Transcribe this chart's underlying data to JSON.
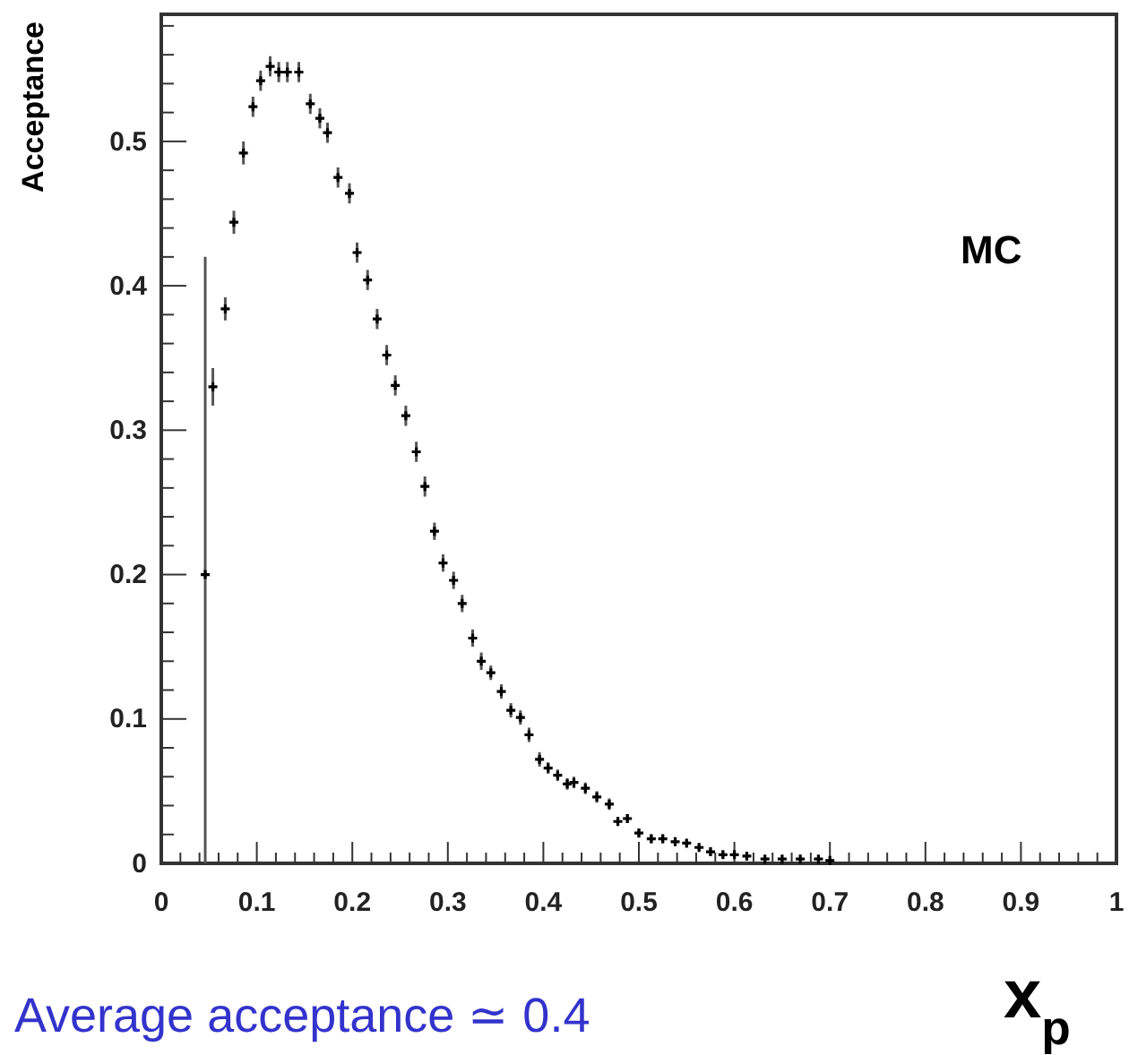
{
  "chart_data": {
    "type": "scatter",
    "xlabel": "x$_{p}$",
    "ylabel": "Acceptance",
    "annotations": [
      "MC",
      "Average acceptance ≃ 0.4"
    ],
    "xlim": [
      0,
      1
    ],
    "xticks": [
      0,
      0.1,
      0.2,
      0.3,
      0.4,
      0.5,
      0.6,
      0.7,
      0.8,
      0.9,
      1
    ],
    "ylim": [
      0,
      0.588
    ],
    "yticks": [
      0,
      0.1,
      0.2,
      0.3,
      0.4,
      0.5
    ],
    "marker": "cross",
    "grid": false,
    "series": [
      {
        "color": "#000000",
        "x": [
          0.046,
          0.054,
          0.067,
          0.076,
          0.086,
          0.096,
          0.104,
          0.114,
          0.123,
          0.132,
          0.144,
          0.156,
          0.166,
          0.174,
          0.185,
          0.197,
          0.205,
          0.216,
          0.226,
          0.236,
          0.245,
          0.256,
          0.267,
          0.276,
          0.286,
          0.295,
          0.306,
          0.315,
          0.326,
          0.335,
          0.345,
          0.356,
          0.366,
          0.376,
          0.385,
          0.396,
          0.405,
          0.415,
          0.425,
          0.432,
          0.444,
          0.456,
          0.469,
          0.478,
          0.488,
          0.5,
          0.513,
          0.525,
          0.538,
          0.55,
          0.563,
          0.575,
          0.588,
          0.6,
          0.613,
          0.632,
          0.65,
          0.669,
          0.688,
          0.7
        ],
        "values": [
          0.2,
          0.33,
          0.384,
          0.444,
          0.492,
          0.524,
          0.542,
          0.552,
          0.548,
          0.548,
          0.548,
          0.526,
          0.516,
          0.506,
          0.475,
          0.464,
          0.423,
          0.404,
          0.377,
          0.352,
          0.331,
          0.31,
          0.285,
          0.261,
          0.23,
          0.208,
          0.196,
          0.18,
          0.156,
          0.14,
          0.132,
          0.119,
          0.106,
          0.101,
          0.089,
          0.072,
          0.066,
          0.061,
          0.055,
          0.056,
          0.052,
          0.046,
          0.041,
          0.029,
          0.031,
          0.021,
          0.017,
          0.017,
          0.015,
          0.014,
          0.011,
          0.008,
          0.006,
          0.006,
          0.005,
          0.003,
          0.003,
          0.003,
          0.003,
          0.002
        ],
        "errors": [
          [
            0,
            0.42
          ],
          0.013,
          0.008,
          0.008,
          0.008,
          0.007,
          0.007,
          0.007,
          0.007,
          0.007,
          0.007,
          0.007,
          0.007,
          0.007,
          0.007,
          0.007,
          0.007,
          0.007,
          0.007,
          0.007,
          0.007,
          0.007,
          0.007,
          0.007,
          0.006,
          0.006,
          0.006,
          0.006,
          0.006,
          0.006,
          0.005,
          0.005,
          0.005,
          0.005,
          0.005,
          0.005,
          0.004,
          0.004,
          0.004,
          0.004,
          0.004,
          0.004,
          0.004,
          0.003,
          0.003,
          0.003,
          0.003,
          0.003,
          0.003,
          0.002,
          0.002,
          0.002,
          0.002,
          0.002,
          0.002,
          0.001,
          0.001,
          0.001,
          0.001,
          0.001
        ]
      }
    ]
  }
}
